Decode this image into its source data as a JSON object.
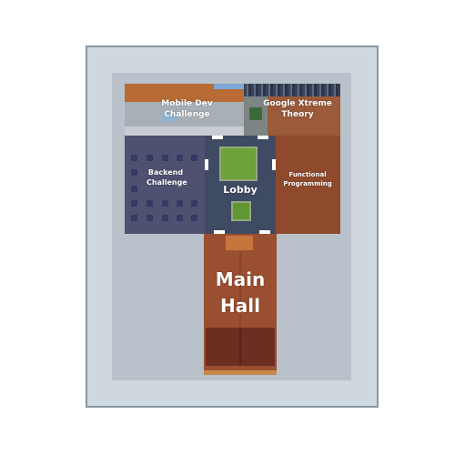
{
  "map": {
    "rooms": {
      "mobile_dev": {
        "label": "Mobile Dev Challenge",
        "color": "#a8b0b6"
      },
      "google_xtreme": {
        "label": "Google Xtreme Theory",
        "color": "#9b5a3a"
      },
      "backend": {
        "label": "Backend Challenge",
        "color": "#4f5170"
      },
      "lobby": {
        "label": "Lobby",
        "color": "#3f4a63"
      },
      "functional": {
        "label": "Functional Programming",
        "color": "#8f4a2d"
      },
      "main_hall": {
        "label": "Main Hall",
        "color": "#9b4f31"
      }
    }
  }
}
